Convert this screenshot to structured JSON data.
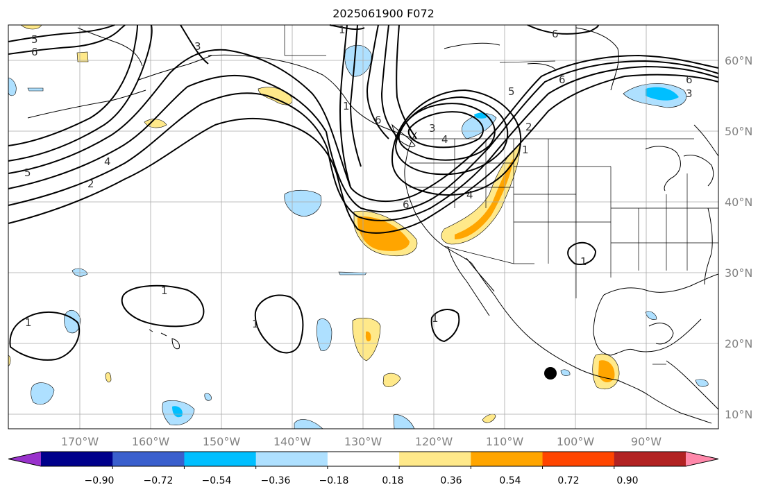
{
  "title": "2025061900 F072",
  "lat_labels": [
    "60°N",
    "50°N",
    "40°N",
    "30°N",
    "20°N",
    "10°N"
  ],
  "lon_labels": [
    "170°W",
    "160°W",
    "150°W",
    "140°W",
    "130°W",
    "120°W",
    "110°W",
    "100°W",
    "90°W"
  ],
  "colorbar": {
    "ticks": [
      "−0.90",
      "−0.72",
      "−0.54",
      "−0.36",
      "−0.18",
      "0.18",
      "0.36",
      "0.54",
      "0.72",
      "0.90"
    ],
    "colors": [
      "#9932cc",
      "#00008b",
      "#3a5fcd",
      "#00bfff",
      "#aee0ff",
      "#ffffff",
      "#ffe98a",
      "#ffa500",
      "#ff4500",
      "#b22222",
      "#ff88aa"
    ]
  },
  "contour_labels": {
    "c5a": "5",
    "c6a": "6",
    "c3a": "3",
    "c1a": "1",
    "c6b": "6",
    "c5b": "5",
    "c4a": "4",
    "c2a": "2",
    "c6c": "6",
    "c6d": "6",
    "c5c": "5",
    "c3b": "3",
    "c4b": "4",
    "c2b": "2",
    "c1b": "1",
    "c6e": "6",
    "c1c": "1",
    "c1d": "1",
    "c1e": "1",
    "c1f": "1",
    "c1g": "1",
    "c4c": "4",
    "c6f": "6",
    "c3c": "3",
    "c1h": "1"
  },
  "colors": {
    "positive": "#ffe98a",
    "positive_strong": "#ffa500",
    "negative": "#aee0ff",
    "negative_strong": "#00bfff"
  }
}
